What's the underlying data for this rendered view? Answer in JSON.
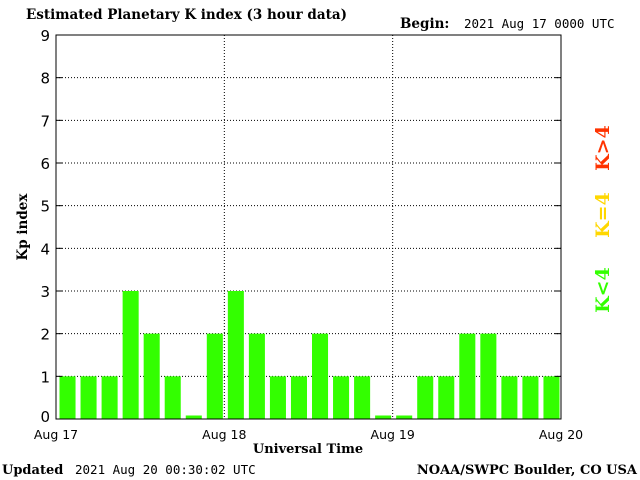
{
  "header": {
    "title": "Estimated Planetary K index (3 hour data)",
    "begin_label": "Begin:",
    "begin_value": "2021 Aug 17 0000 UTC"
  },
  "footer": {
    "updated_label": "Updated",
    "updated_value": "2021 Aug 20 00:30:02 UTC",
    "credit": "NOAA/SWPC Boulder, CO USA"
  },
  "legend": [
    {
      "label": "K<4",
      "color": "#33ff00"
    },
    {
      "label": "K=4",
      "color": "#ffd700"
    },
    {
      "label": "K>4",
      "color": "#ff3300"
    }
  ],
  "chart_data": {
    "type": "bar",
    "title": "Estimated Planetary K index (3 hour data)",
    "xlabel": "Universal Time",
    "ylabel": "Kp index",
    "ylim": [
      0,
      9
    ],
    "yticks": [
      0,
      1,
      2,
      3,
      4,
      5,
      6,
      7,
      8,
      9
    ],
    "xtick_labels": [
      "Aug 17",
      "Aug 18",
      "Aug 19",
      "Aug 20"
    ],
    "grid": true,
    "bar_color": "#33ff00",
    "values": [
      1,
      1,
      1,
      3,
      2,
      1,
      0,
      2,
      3,
      2,
      1,
      1,
      2,
      1,
      1,
      0,
      0,
      1,
      1,
      2,
      2,
      1,
      1,
      1
    ]
  }
}
